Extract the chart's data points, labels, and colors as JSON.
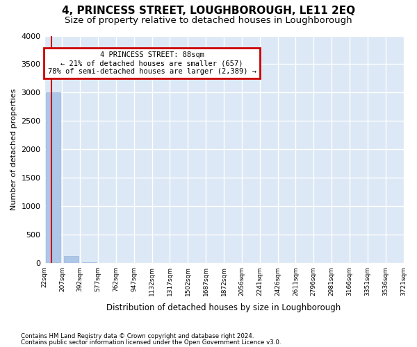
{
  "title": "4, PRINCESS STREET, LOUGHBOROUGH, LE11 2EQ",
  "subtitle": "Size of property relative to detached houses in Loughborough",
  "xlabel": "Distribution of detached houses by size in Loughborough",
  "ylabel": "Number of detached properties",
  "footnote1": "Contains HM Land Registry data © Crown copyright and database right 2024.",
  "footnote2": "Contains public sector information licensed under the Open Government Licence v3.0.",
  "tick_labels": [
    "22sqm",
    "207sqm",
    "392sqm",
    "577sqm",
    "762sqm",
    "947sqm",
    "1132sqm",
    "1317sqm",
    "1502sqm",
    "1687sqm",
    "1872sqm",
    "2056sqm",
    "2241sqm",
    "2426sqm",
    "2611sqm",
    "2796sqm",
    "2981sqm",
    "3166sqm",
    "3351sqm",
    "3536sqm",
    "3721sqm"
  ],
  "values": [
    3000,
    120,
    5,
    2,
    1,
    1,
    0,
    0,
    0,
    0,
    0,
    0,
    0,
    0,
    0,
    0,
    0,
    0,
    0,
    0
  ],
  "bar_color": "#aec6e8",
  "bar_edge_color": "#9ab8d8",
  "ylim": [
    0,
    4000
  ],
  "yticks": [
    0,
    500,
    1000,
    1500,
    2000,
    2500,
    3000,
    3500,
    4000
  ],
  "property_sqm": 88,
  "annotation_title": "4 PRINCESS STREET: 88sqm",
  "annotation_line1": "← 21% of detached houses are smaller (657)",
  "annotation_line2": "78% of semi-detached houses are larger (2,389) →",
  "annotation_box_color": "#cc0000",
  "vline_color": "#cc0000",
  "bg_color": "#dce8f5",
  "grid_color": "#ffffff",
  "title_fontsize": 11,
  "subtitle_fontsize": 9.5
}
